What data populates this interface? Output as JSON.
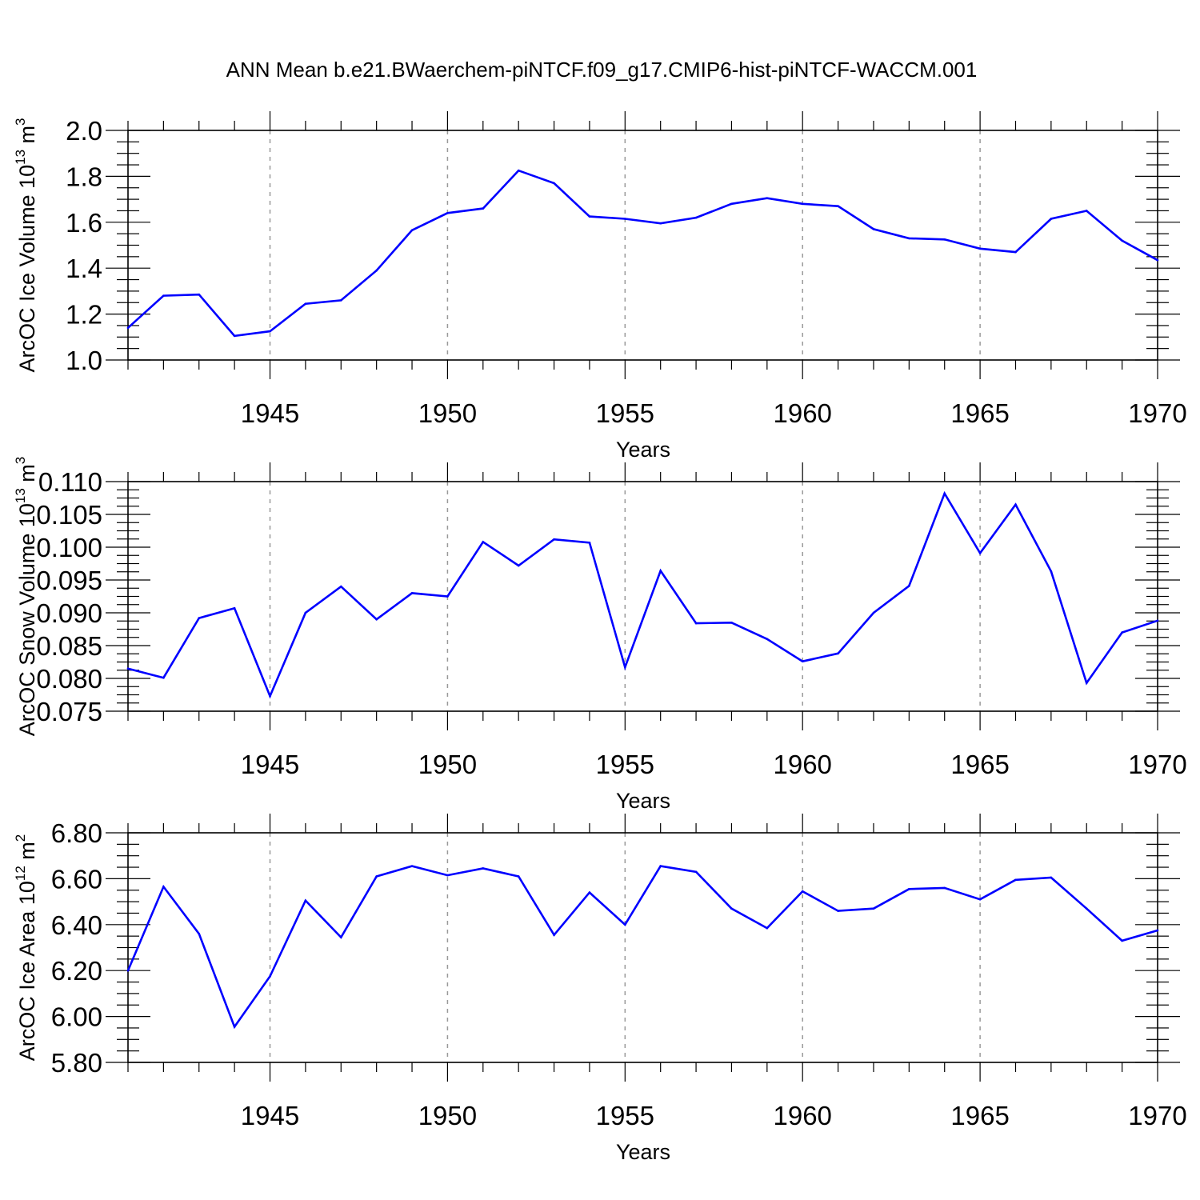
{
  "figure": {
    "title": "ANN Mean b.e21.BWaerchem-piNTCF.f09_g17.CMIP6-hist-piNTCF-WACCM.001",
    "colors": {
      "line": "#0000ff",
      "axis": "#000000",
      "grid": "#999999",
      "background": "#ffffff"
    }
  },
  "chart_data": [
    {
      "type": "line",
      "ylabel": {
        "main": "ArcOC Ice Volume 10",
        "exp": "13",
        "unit": " m",
        "unit_exp": "3"
      },
      "xlabel": "Years",
      "xlim": [
        1941,
        1970
      ],
      "ylim": [
        1.0,
        2.0
      ],
      "yticks": [
        1.0,
        1.2,
        1.4,
        1.6,
        1.8,
        2.0
      ],
      "ytick_labels": [
        "1.0",
        "1.2",
        "1.4",
        "1.6",
        "1.8",
        "2.0"
      ],
      "xticks": [
        1945,
        1950,
        1955,
        1960,
        1965,
        1970
      ],
      "xtick_labels": [
        "1945",
        "1950",
        "1955",
        "1960",
        "1965",
        "1970"
      ],
      "grid": "vertical-dashed",
      "x": [
        1941,
        1942,
        1943,
        1944,
        1945,
        1946,
        1947,
        1948,
        1949,
        1950,
        1951,
        1952,
        1953,
        1954,
        1955,
        1956,
        1957,
        1958,
        1959,
        1960,
        1961,
        1962,
        1963,
        1964,
        1965,
        1966,
        1967,
        1968,
        1969,
        1970
      ],
      "values": [
        1.14,
        1.28,
        1.285,
        1.105,
        1.125,
        1.245,
        1.26,
        1.39,
        1.565,
        1.64,
        1.66,
        1.825,
        1.77,
        1.625,
        1.615,
        1.595,
        1.62,
        1.68,
        1.705,
        1.68,
        1.67,
        1.57,
        1.53,
        1.525,
        1.485,
        1.47,
        1.615,
        1.65,
        1.52,
        1.435
      ]
    },
    {
      "type": "line",
      "ylabel": {
        "main": "ArcOC Snow Volume 10",
        "exp": "13",
        "unit": " m",
        "unit_exp": "3"
      },
      "xlabel": "Years",
      "xlim": [
        1941,
        1970
      ],
      "ylim": [
        0.075,
        0.11
      ],
      "yticks": [
        0.075,
        0.08,
        0.085,
        0.09,
        0.095,
        0.1,
        0.105,
        0.11
      ],
      "ytick_labels": [
        "0.075",
        "0.080",
        "0.085",
        "0.090",
        "0.095",
        "0.100",
        "0.105",
        "0.110"
      ],
      "xticks": [
        1945,
        1950,
        1955,
        1960,
        1965,
        1970
      ],
      "xtick_labels": [
        "1945",
        "1950",
        "1955",
        "1960",
        "1965",
        "1970"
      ],
      "grid": "vertical-dashed",
      "x": [
        1941,
        1942,
        1943,
        1944,
        1945,
        1946,
        1947,
        1948,
        1949,
        1950,
        1951,
        1952,
        1953,
        1954,
        1955,
        1956,
        1957,
        1958,
        1959,
        1960,
        1961,
        1962,
        1963,
        1964,
        1965,
        1966,
        1967,
        1968,
        1969,
        1970
      ],
      "values": [
        0.0815,
        0.0801,
        0.0892,
        0.0907,
        0.0773,
        0.09,
        0.094,
        0.089,
        0.093,
        0.0925,
        0.1008,
        0.0972,
        0.1012,
        0.1007,
        0.0817,
        0.0964,
        0.0884,
        0.0885,
        0.086,
        0.0826,
        0.0838,
        0.09,
        0.0941,
        0.1082,
        0.0991,
        0.1065,
        0.0963,
        0.0793,
        0.087,
        0.0888
      ]
    },
    {
      "type": "line",
      "ylabel": {
        "main": "ArcOC Ice Area 10",
        "exp": "12",
        "unit": " m",
        "unit_exp": "2"
      },
      "xlabel": "Years",
      "xlim": [
        1941,
        1970
      ],
      "ylim": [
        5.8,
        6.8
      ],
      "yticks": [
        5.8,
        6.0,
        6.2,
        6.4,
        6.6,
        6.8
      ],
      "ytick_labels": [
        "5.80",
        "6.00",
        "6.20",
        "6.40",
        "6.60",
        "6.80"
      ],
      "xticks": [
        1945,
        1950,
        1955,
        1960,
        1965,
        1970
      ],
      "xtick_labels": [
        "1945",
        "1950",
        "1955",
        "1960",
        "1965",
        "1970"
      ],
      "grid": "vertical-dashed",
      "x": [
        1941,
        1942,
        1943,
        1944,
        1945,
        1946,
        1947,
        1948,
        1949,
        1950,
        1951,
        1952,
        1953,
        1954,
        1955,
        1956,
        1957,
        1958,
        1959,
        1960,
        1961,
        1962,
        1963,
        1964,
        1965,
        1966,
        1967,
        1968,
        1969,
        1970
      ],
      "values": [
        6.2,
        6.565,
        6.36,
        5.955,
        6.175,
        6.505,
        6.345,
        6.61,
        6.655,
        6.615,
        6.645,
        6.61,
        6.355,
        6.54,
        6.4,
        6.655,
        6.63,
        6.47,
        6.385,
        6.545,
        6.46,
        6.47,
        6.555,
        6.56,
        6.51,
        6.595,
        6.605,
        6.47,
        6.33,
        6.375
      ]
    }
  ]
}
